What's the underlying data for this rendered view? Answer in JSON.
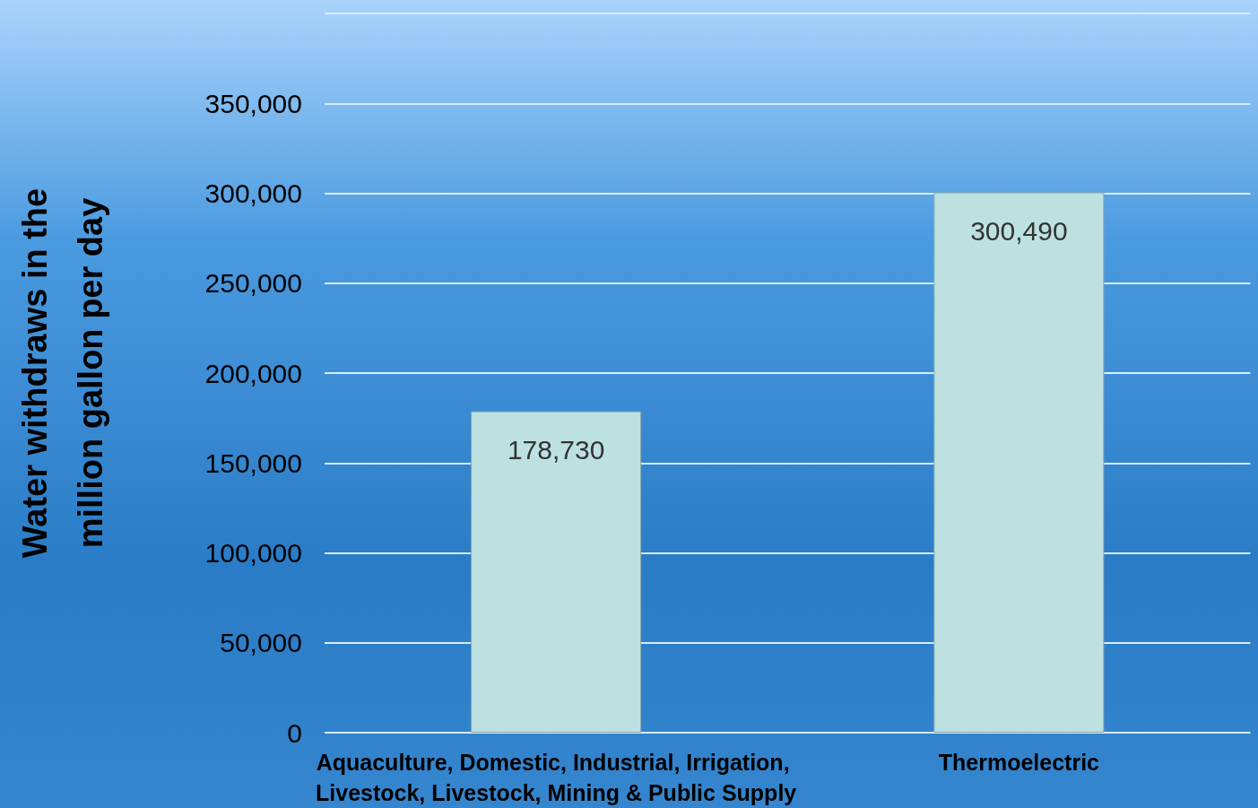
{
  "chart_data": {
    "type": "bar",
    "ylabel": "Water withdraws in the\nmillion gallon per day",
    "categories": [
      "Aquaculture, Domestic, Industrial, Irrigation, Livestock, Livestock, Mining & Public Supply",
      "Thermoelectric"
    ],
    "values": [
      178730,
      300490
    ],
    "value_labels": [
      "178,730",
      "300,490"
    ],
    "color": "#bde1e1",
    "ylim": [
      0,
      400000
    ],
    "yticks": [
      0,
      {
        "value": 50000,
        "label": "50,000"
      },
      {
        "value": 100000,
        "label": "100,000"
      },
      {
        "value": 150000,
        "label": "150,000"
      },
      {
        "value": 200000,
        "label": "200,000"
      },
      {
        "value": 250000,
        "label": "250,000"
      },
      {
        "value": 300000,
        "label": "300,000"
      },
      {
        "value": 350000,
        "label": "350,000"
      },
      {
        "value": 400000,
        "label": null
      }
    ],
    "grid": "y"
  }
}
